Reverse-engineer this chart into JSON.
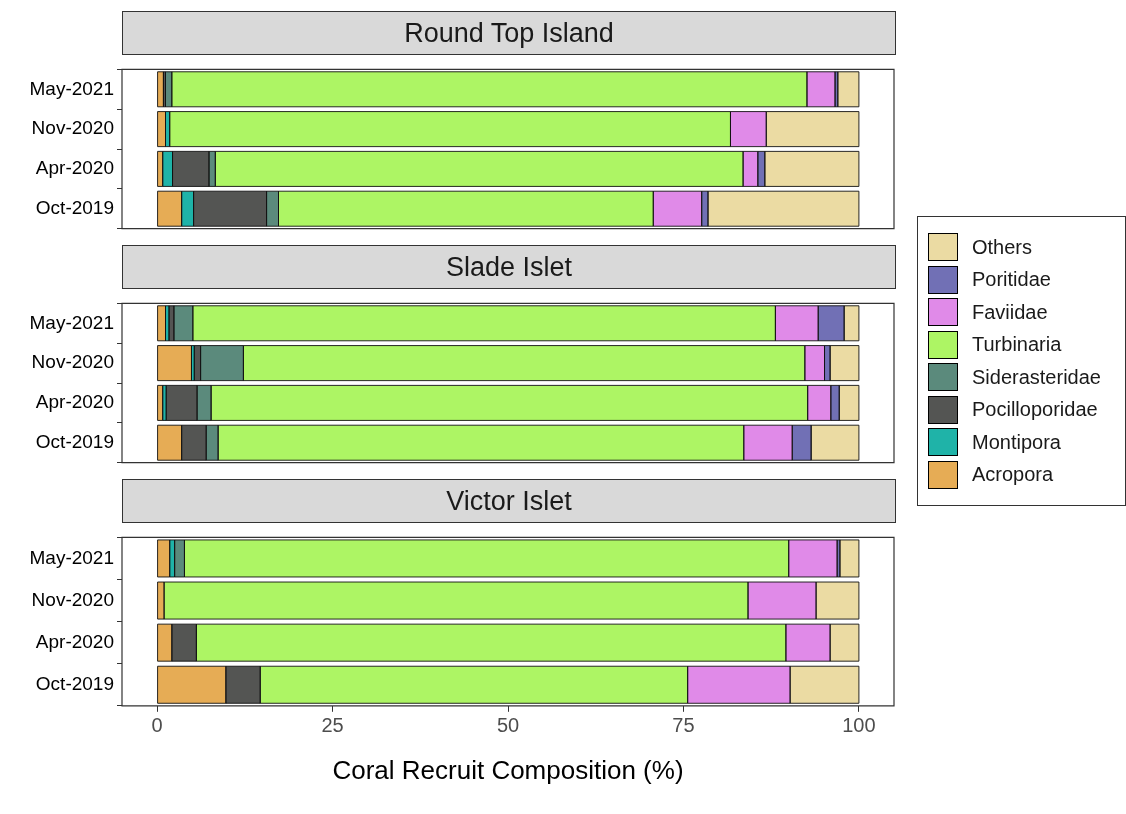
{
  "chart_data": [
    {
      "type": "bar",
      "title": "Round Top Island",
      "orientation": "horizontal",
      "stacked": true,
      "grid": false,
      "tick_labels": "y",
      "xlim": [
        -5,
        105
      ],
      "xticks": [
        0,
        25,
        50,
        75,
        100
      ],
      "categories": [
        "May-2021",
        "Nov-2020",
        "Apr-2020",
        "Oct-2019"
      ],
      "series": [
        {
          "color": "#e6ac55",
          "values": [
            0.9,
            1.2,
            0.8,
            3.5
          ]
        },
        {
          "color": "#1fb3a8",
          "values": [
            0,
            0.6,
            1.4,
            1.7
          ]
        },
        {
          "color": "#545553",
          "values": [
            0.3,
            0,
            5.2,
            10.4
          ]
        },
        {
          "color": "#5b8a7c",
          "values": [
            0.9,
            0,
            0.9,
            1.7
          ]
        },
        {
          "color": "#adf564",
          "values": [
            90.5,
            79.9,
            75.2,
            53.4
          ]
        },
        {
          "color": "#e08ae8",
          "values": [
            4.0,
            5.1,
            2.1,
            6.9
          ]
        },
        {
          "color": "#7170b5",
          "values": [
            0.4,
            0,
            1.0,
            0.9
          ]
        },
        {
          "color": "#ebdba3",
          "values": [
            3.0,
            13.2,
            13.4,
            21.5
          ]
        }
      ]
    },
    {
      "type": "bar",
      "title": "Slade Islet",
      "orientation": "horizontal",
      "stacked": true,
      "grid": false,
      "tick_labels": "y",
      "legend": "right",
      "xlim": [
        -5,
        105
      ],
      "xticks": [
        0,
        25,
        50,
        75,
        100
      ],
      "categories": [
        "May-2021",
        "Nov-2020",
        "Apr-2020",
        "Oct-2019"
      ],
      "series": [
        {
          "name": "Acropora",
          "color": "#e6ac55",
          "values": [
            1.2,
            4.9,
            0.8,
            3.5
          ]
        },
        {
          "name": "Montipora",
          "color": "#1fb3a8",
          "values": [
            0.5,
            0.4,
            0.5,
            0
          ]
        },
        {
          "name": "Pocilloporidae",
          "color": "#545553",
          "values": [
            0.7,
            0.9,
            4.4,
            3.5
          ]
        },
        {
          "name": "Siderasteridae",
          "color": "#5b8a7c",
          "values": [
            2.7,
            6.1,
            2.0,
            1.7
          ]
        },
        {
          "name": "Turbinaria",
          "color": "#adf564",
          "values": [
            83.0,
            80.0,
            85.0,
            74.9
          ]
        },
        {
          "name": "Faviidae",
          "color": "#e08ae8",
          "values": [
            6.1,
            2.8,
            3.3,
            6.9
          ]
        },
        {
          "name": "Poritidae",
          "color": "#7170b5",
          "values": [
            3.7,
            0.8,
            1.2,
            2.7
          ]
        },
        {
          "name": "Others",
          "color": "#ebdba3",
          "values": [
            2.1,
            4.1,
            2.8,
            6.8
          ]
        }
      ]
    },
    {
      "type": "bar",
      "title": "Victor Islet",
      "xlabel": "Coral Recruit Composition (%)",
      "orientation": "horizontal",
      "stacked": true,
      "grid": false,
      "xlim": [
        -5,
        105
      ],
      "xticks": [
        0,
        25,
        50,
        75,
        100
      ],
      "categories": [
        "May-2021",
        "Nov-2020",
        "Apr-2020",
        "Oct-2019"
      ],
      "series": [
        {
          "color": "#e6ac55",
          "values": [
            1.8,
            1.0,
            2.1,
            9.8
          ]
        },
        {
          "color": "#1fb3a8",
          "values": [
            0.7,
            0,
            0,
            0
          ]
        },
        {
          "color": "#545553",
          "values": [
            0,
            0,
            3.5,
            4.9
          ]
        },
        {
          "color": "#5b8a7c",
          "values": [
            1.4,
            0,
            0,
            0
          ]
        },
        {
          "color": "#adf564",
          "values": [
            86.1,
            83.2,
            84.0,
            60.9
          ]
        },
        {
          "color": "#e08ae8",
          "values": [
            6.9,
            9.7,
            6.3,
            14.6
          ]
        },
        {
          "color": "#7170b5",
          "values": [
            0.4,
            0,
            0,
            0
          ]
        },
        {
          "color": "#ebdba3",
          "values": [
            2.7,
            6.1,
            4.1,
            9.8
          ]
        }
      ]
    }
  ]
}
